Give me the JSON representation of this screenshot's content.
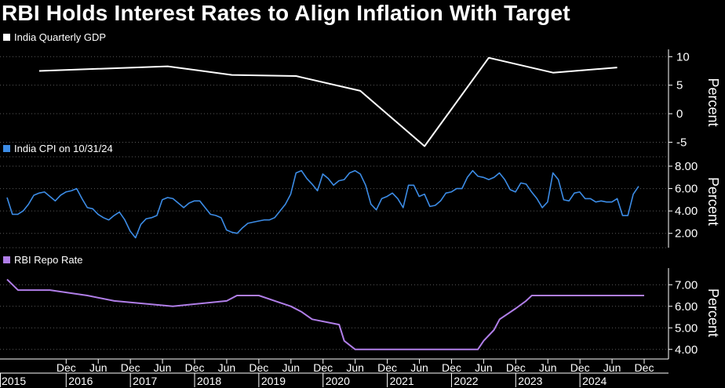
{
  "title": "RBI Holds Interest Rates to Align Inflation With Target",
  "colors": {
    "background": "#000000",
    "gdp": "#ffffff",
    "cpi": "#3c8ce6",
    "repo": "#b07ee8",
    "grid": "#5a5a5a"
  },
  "x_axis": {
    "ticks": [
      {
        "t": 2015.92,
        "month": "Dec",
        "year": "2015"
      },
      {
        "t": 2016.42,
        "month": "Jun",
        "year": "2016"
      },
      {
        "t": 2016.92,
        "month": "Dec",
        "year": ""
      },
      {
        "t": 2017.42,
        "month": "Jun",
        "year": "2017"
      },
      {
        "t": 2017.92,
        "month": "Dec",
        "year": ""
      },
      {
        "t": 2018.42,
        "month": "Jun",
        "year": "2018"
      },
      {
        "t": 2018.92,
        "month": "Dec",
        "year": ""
      },
      {
        "t": 2019.42,
        "month": "Jun",
        "year": "2019"
      },
      {
        "t": 2019.92,
        "month": "Dec",
        "year": ""
      },
      {
        "t": 2020.42,
        "month": "Jun",
        "year": "2020"
      },
      {
        "t": 2020.92,
        "month": "Dec",
        "year": ""
      },
      {
        "t": 2021.42,
        "month": "Jun",
        "year": "2021"
      },
      {
        "t": 2021.92,
        "month": "Dec",
        "year": ""
      },
      {
        "t": 2022.42,
        "month": "Jun",
        "year": "2022"
      },
      {
        "t": 2022.92,
        "month": "Dec",
        "year": ""
      },
      {
        "t": 2023.42,
        "month": "Jun",
        "year": "2023"
      },
      {
        "t": 2023.92,
        "month": "Dec",
        "year": ""
      },
      {
        "t": 2024.42,
        "month": "Jun",
        "year": "2024"
      },
      {
        "t": 2024.92,
        "month": "Dec",
        "year": ""
      }
    ]
  },
  "chart_data": [
    {
      "type": "line",
      "title": "India Quarterly GDP",
      "ylabel": "Percent",
      "ylim": [
        -7,
        11
      ],
      "yticks": [
        {
          "v": 10,
          "label": "10"
        },
        {
          "v": 5,
          "label": "5"
        },
        {
          "v": 0,
          "label": "0"
        },
        {
          "v": -5,
          "label": "-5"
        }
      ],
      "x": [
        2015.5,
        2017.5,
        2018.5,
        2019.5,
        2020.5,
        2021.5,
        2022.5,
        2023.5,
        2024.5
      ],
      "values": [
        7.5,
        8.3,
        6.8,
        6.6,
        4.0,
        -5.7,
        9.8,
        7.2,
        8.1
      ]
    },
    {
      "type": "line",
      "title": "India CPI on 10/31/24",
      "ylabel": "Percent",
      "ylim": [
        1.0,
        8.7
      ],
      "yticks": [
        {
          "v": 8,
          "label": "8.00"
        },
        {
          "v": 6,
          "label": "6.00"
        },
        {
          "v": 4,
          "label": "4.00"
        },
        {
          "v": 2,
          "label": "2.00"
        }
      ],
      "x_start": 2015.0,
      "x_step": 0.08333,
      "values": [
        5.2,
        3.7,
        3.7,
        4.0,
        4.6,
        5.4,
        5.6,
        5.7,
        5.3,
        4.9,
        5.4,
        5.7,
        5.8,
        6.0,
        5.1,
        4.3,
        4.2,
        3.7,
        3.4,
        3.2,
        3.6,
        3.9,
        3.2,
        2.2,
        1.6,
        2.8,
        3.3,
        3.4,
        3.6,
        5.0,
        5.2,
        5.1,
        4.7,
        4.3,
        4.7,
        4.9,
        4.9,
        4.3,
        3.7,
        3.6,
        3.4,
        2.3,
        2.1,
        2.0,
        2.5,
        2.9,
        3.0,
        3.1,
        3.2,
        3.2,
        3.4,
        4.0,
        4.6,
        5.5,
        7.4,
        7.6,
        6.9,
        6.4,
        5.8,
        7.3,
        6.9,
        6.3,
        6.7,
        6.8,
        7.4,
        7.6,
        7.3,
        6.3,
        4.6,
        4.1,
        5.1,
        5.3,
        5.6,
        5.1,
        4.3,
        6.3,
        6.3,
        5.3,
        5.5,
        4.4,
        4.5,
        4.9,
        5.6,
        5.7,
        6.0,
        6.0,
        7.0,
        7.6,
        7.1,
        7.0,
        6.8,
        7.0,
        7.4,
        6.8,
        5.9,
        5.7,
        6.5,
        6.4,
        5.7,
        5.1,
        4.3,
        4.8,
        7.4,
        6.8,
        5.0,
        4.9,
        5.6,
        5.7,
        5.1,
        5.1,
        4.8,
        4.9,
        4.8,
        4.8,
        5.1,
        3.6,
        3.6,
        5.5,
        6.2
      ]
    },
    {
      "type": "line",
      "title": "RBI Repo Rate",
      "ylabel": "Percent",
      "ylim": [
        3.7,
        7.7
      ],
      "yticks": [
        {
          "v": 7,
          "label": "7.00"
        },
        {
          "v": 6,
          "label": "6.00"
        },
        {
          "v": 5,
          "label": "5.00"
        },
        {
          "v": 4,
          "label": "4.00"
        }
      ],
      "x": [
        2015.0,
        2015.17,
        2015.67,
        2016.25,
        2016.67,
        2017.58,
        2018.42,
        2018.58,
        2018.92,
        2019.17,
        2019.42,
        2019.58,
        2019.75,
        2020.17,
        2020.25,
        2020.42,
        2022.33,
        2022.42,
        2022.58,
        2022.67,
        2022.92,
        2023.08,
        2023.17,
        2024.92
      ],
      "values": [
        7.25,
        6.75,
        6.75,
        6.5,
        6.25,
        6.0,
        6.25,
        6.5,
        6.5,
        6.25,
        6.0,
        5.75,
        5.4,
        5.15,
        4.4,
        4.0,
        4.0,
        4.4,
        4.9,
        5.4,
        5.9,
        6.25,
        6.5,
        6.5
      ]
    }
  ]
}
